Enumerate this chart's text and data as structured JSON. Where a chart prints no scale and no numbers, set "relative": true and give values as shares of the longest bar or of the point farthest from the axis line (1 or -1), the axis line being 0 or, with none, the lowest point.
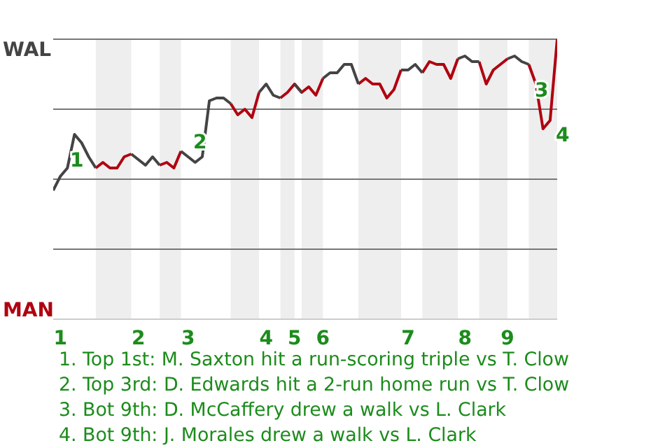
{
  "chart_data": {
    "type": "line",
    "relative": true,
    "categories": [
      null,
      "1",
      null,
      null,
      null,
      null,
      null,
      null,
      null,
      null,
      null,
      null,
      "2",
      null,
      null,
      null,
      null,
      null,
      null,
      "3",
      null,
      null,
      null,
      null,
      null,
      null,
      null,
      null,
      null,
      null,
      "4",
      null,
      null,
      null,
      "5",
      null,
      null,
      null,
      "6",
      null,
      null,
      null,
      null,
      null,
      null,
      null,
      null,
      null,
      null,
      null,
      "7",
      null,
      null,
      null,
      null,
      null,
      null,
      null,
      "8",
      null,
      null,
      null,
      null,
      null,
      "9",
      null,
      null,
      null,
      null,
      null,
      null,
      null
    ],
    "series": [
      {
        "color": "#444444",
        "values": [
          0.46,
          0.51,
          0.54,
          0.66,
          0.63,
          0.58,
          0.54,
          null,
          null,
          null,
          null,
          0.59,
          0.57,
          0.55,
          0.58,
          0.55,
          null,
          null,
          0.6,
          0.58,
          0.56,
          0.58,
          0.78,
          0.79,
          0.79,
          0.77,
          null,
          null,
          null,
          0.81,
          0.84,
          0.8,
          0.79,
          null,
          0.84,
          0.81,
          null,
          null,
          0.86,
          0.88,
          0.88,
          0.91,
          0.91,
          0.84,
          null,
          null,
          null,
          null,
          null,
          0.89,
          0.89,
          0.91,
          0.88,
          null,
          null,
          null,
          null,
          0.93,
          0.94,
          0.92,
          0.92,
          null,
          null,
          null,
          0.93,
          0.94,
          0.92,
          0.91,
          null,
          null,
          null,
          null
        ]
      },
      {
        "color": "#b00010",
        "values": [
          null,
          null,
          null,
          null,
          null,
          null,
          0.54,
          0.56,
          0.54,
          0.54,
          0.58,
          0.59,
          null,
          null,
          null,
          0.55,
          0.56,
          0.54,
          0.6,
          null,
          null,
          null,
          null,
          null,
          null,
          0.77,
          0.73,
          0.75,
          0.72,
          0.81,
          null,
          null,
          0.79,
          0.81,
          0.84,
          0.81,
          0.83,
          0.8,
          0.86,
          null,
          null,
          null,
          null,
          0.84,
          0.86,
          0.84,
          0.84,
          0.79,
          0.82,
          0.89,
          null,
          null,
          0.88,
          0.92,
          0.91,
          0.91,
          0.86,
          0.93,
          null,
          null,
          0.92,
          0.84,
          0.89,
          0.91,
          0.93,
          null,
          null,
          0.91,
          0.84,
          0.68,
          0.71,
          1
        ]
      }
    ],
    "ref_lines": [
      {
        "axis": "y",
        "value": 0.25,
        "color": "#777777"
      },
      {
        "axis": "y",
        "value": 0.5,
        "color": "#777777"
      },
      {
        "axis": "y",
        "value": 0.75,
        "color": "#777777"
      },
      {
        "axis": "y",
        "value": 1,
        "color": "#777777"
      }
    ],
    "annotations": [
      "WAL",
      "MAN",
      "1",
      "2",
      "3",
      "4",
      "1. Top 1st: M. Saxton hit a run-scoring triple vs T. Clow",
      "2. Top 3rd: D. Edwards hit a 2-run home run vs T. Clow",
      "3. Bot 9th: D. McCaffery drew a walk vs L. Clark",
      "4. Bot 9th: J. Morales drew a walk vs L. Clark"
    ]
  }
}
